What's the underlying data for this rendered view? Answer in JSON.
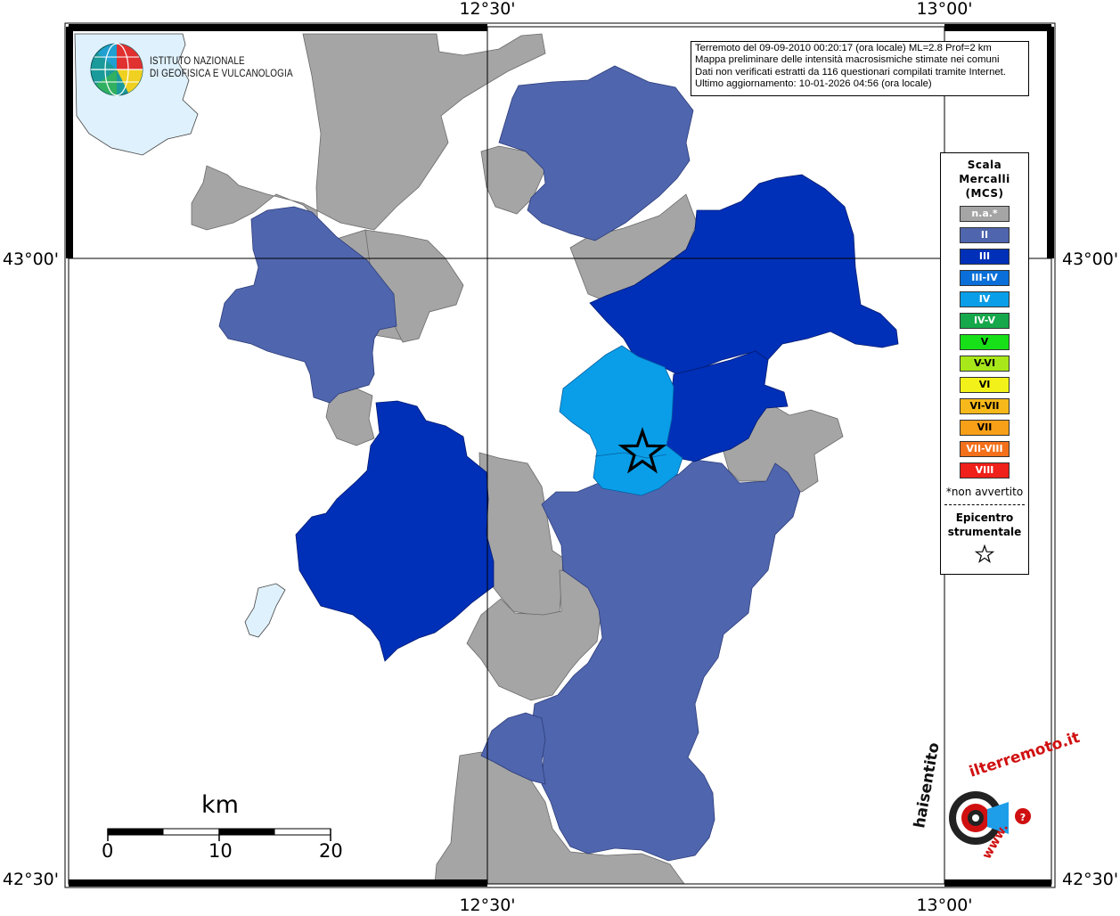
{
  "map": {
    "coordinates": {
      "lon_left": "12°30'",
      "lon_right": "13°00'",
      "lat_top": "43°00'",
      "lat_bottom": "42°30'"
    }
  },
  "institute_logo": {
    "line1": "ISTITUTO NAZIONALE",
    "line2": "DI GEOFISICA E VULCANOLOGIA"
  },
  "info": {
    "line1": "Terremoto del 09-09-2010 00:20:17 (ora locale) ML=2.8 Prof=2 km",
    "line2": "Mappa preliminare delle intensità macrosismiche stimate nei comuni",
    "line3": "Dati non verificati estratti da 116 questionari compilati tramite Internet.",
    "line4": "Ultimo aggiornamento: 10-01-2026 04:56 (ora locale)"
  },
  "legend": {
    "title_line1": "Scala",
    "title_line2": "Mercalli",
    "title_line3": "(MCS)",
    "items": [
      {
        "label": "n.a.*",
        "color": "#a5a5a5"
      },
      {
        "label": "II",
        "color": "#4f65ae"
      },
      {
        "label": "III",
        "color": "#0030b8"
      },
      {
        "label": "III-IV",
        "color": "#0a6fd8"
      },
      {
        "label": "IV",
        "color": "#0a9ee8"
      },
      {
        "label": "IV-V",
        "color": "#16a84a"
      },
      {
        "label": "V",
        "color": "#18e018"
      },
      {
        "label": "V-VI",
        "color": "#a8e81a"
      },
      {
        "label": "VI",
        "color": "#f2f21a"
      },
      {
        "label": "VI-VII",
        "color": "#f6b81a"
      },
      {
        "label": "VII",
        "color": "#f8a018"
      },
      {
        "label": "VII-VIII",
        "color": "#f4701a"
      },
      {
        "label": "VIII",
        "color": "#f0201a"
      }
    ],
    "note": "*non avvertito",
    "epicenter_line1": "Epicentro",
    "epicenter_line2": "strumentale"
  },
  "scale_bar": {
    "unit": "km",
    "ticks": [
      "0",
      "10",
      "20"
    ]
  },
  "watermark": {
    "text_black": "haisentito",
    "text_red": "ilterremoto.it",
    "text_www": "www."
  },
  "colors": {
    "na": "#a5a5a5",
    "ii": "#4f65ae",
    "iii": "#0030b8",
    "iv": "#0a9ee8",
    "water": "#dff1fc"
  }
}
